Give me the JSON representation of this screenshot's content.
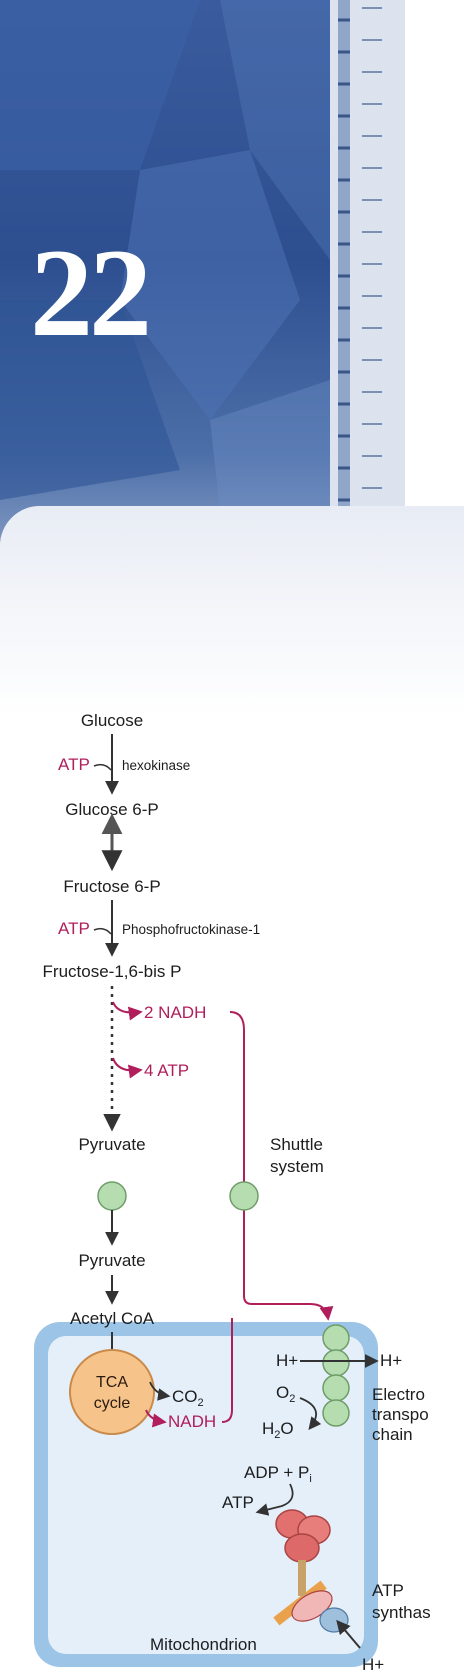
{
  "chapter": {
    "number": "22"
  },
  "pathway": {
    "glucose": "Glucose",
    "atp": "ATP",
    "hexokinase": "hexokinase",
    "glucose_6p": "Glucose 6-P",
    "fructose_6p": "Fructose 6-P",
    "pfk1": "Phosphofructokinase-1",
    "fructose_bisp": "Fructose-1,6-bis P",
    "nadh_2": "2 NADH",
    "atp_4": "4 ATP",
    "pyruvate": "Pyruvate",
    "shuttle_1": "Shuttle",
    "shuttle_2": "system"
  },
  "mitochondrion": {
    "pyruvate": "Pyruvate",
    "acetyl_coa": "Acetyl CoA",
    "tca_1": "TCA",
    "tca_2": "cycle",
    "co2": "CO",
    "co2_sub": "2",
    "nadh": "NADH",
    "h_plus_in": "H+",
    "h_plus_out": "H+",
    "o2": "O",
    "o2_sub": "2",
    "h2o_h": "H",
    "h2o_sub": "2",
    "h2o_o": "O",
    "etc_1": "Electro",
    "etc_2": "transpo",
    "etc_3": "chain",
    "adp_pi": "ADP + P",
    "pi_sub": "i",
    "atp": "ATP",
    "atp_synthase_1": "ATP",
    "atp_synthase_2": "synthas",
    "h_plus_bottom": "H+",
    "label": "Mitochondrion"
  },
  "colors": {
    "banner_blue": "#2d4f90",
    "membrane_blue": "#9cc4e6",
    "matrix_blue": "#e4eff9",
    "nadh_magenta": "#b01e5c",
    "transporter_green": "#b6ddb0",
    "tca_orange": "#f6c48a"
  }
}
